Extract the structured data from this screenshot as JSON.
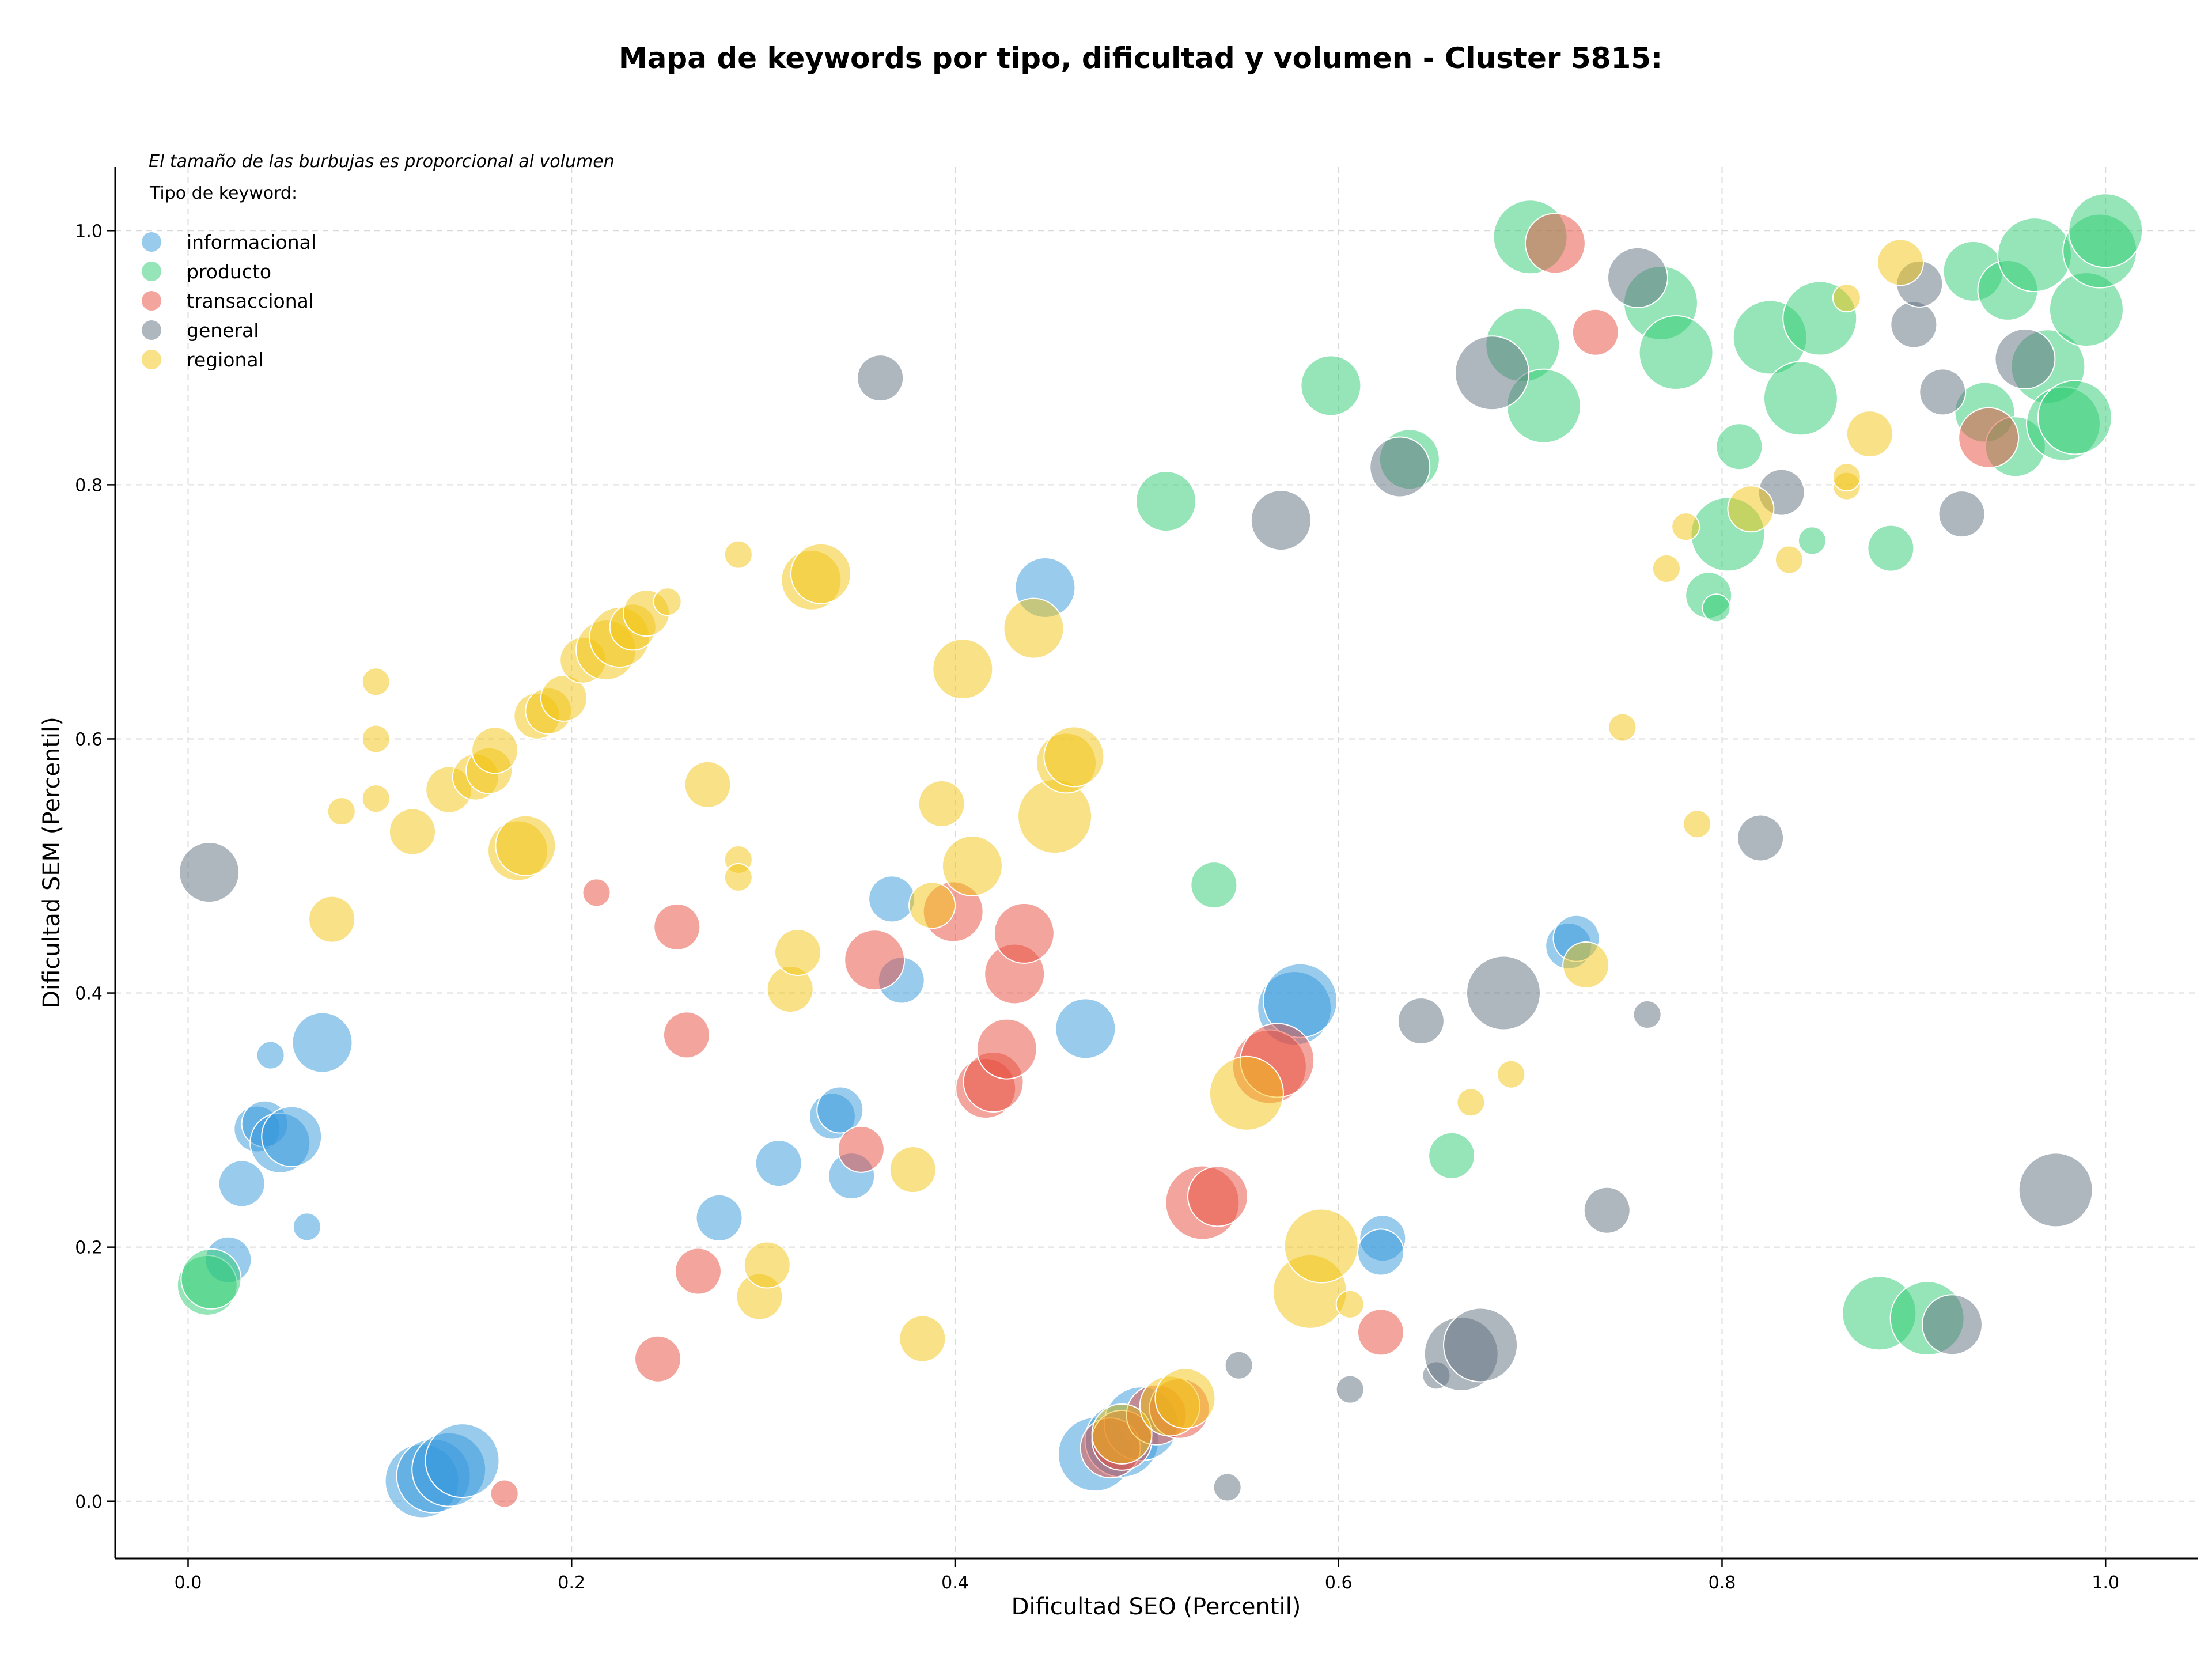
{
  "chart_data": {
    "type": "scatter",
    "title": "Mapa de keywords por tipo, dificultad y volumen - Cluster 5815:",
    "xlabel": "Dificultad SEO (Percentil)",
    "ylabel": "Dificultad SEM (Percentil)",
    "xlim": [
      -0.038,
      1.048
    ],
    "ylim": [
      -0.045,
      1.05
    ],
    "xticks": [
      0.0,
      0.2,
      0.4,
      0.6,
      0.8,
      1.0
    ],
    "yticks": [
      0.0,
      0.2,
      0.4,
      0.6,
      0.8,
      1.0
    ],
    "xtick_labels": [
      "0.0",
      "0.2",
      "0.4",
      "0.6",
      "0.8",
      "1.0"
    ],
    "ytick_labels": [
      "0.0",
      "0.2",
      "0.4",
      "0.6",
      "0.8",
      "1.0"
    ],
    "grid": true,
    "note": "El tamaño de las burbujas es proporcional al volumen",
    "legend_title": "Tipo de keyword:",
    "legend_position": "top-left",
    "series": [
      {
        "name": "informacional",
        "color": "#3498db",
        "points": [
          [
            0.021,
            0.19,
            2
          ],
          [
            0.028,
            0.25,
            2
          ],
          [
            0.036,
            0.293,
            2
          ],
          [
            0.04,
            0.297,
            2
          ],
          [
            0.043,
            0.351,
            1
          ],
          [
            0.048,
            0.282,
            3
          ],
          [
            0.054,
            0.287,
            3
          ],
          [
            0.062,
            0.216,
            1
          ],
          [
            0.07,
            0.361,
            3
          ],
          [
            0.122,
            0.016,
            4
          ],
          [
            0.128,
            0.02,
            4
          ],
          [
            0.136,
            0.025,
            4
          ],
          [
            0.143,
            0.032,
            4
          ],
          [
            0.277,
            0.223,
            2
          ],
          [
            0.308,
            0.266,
            2
          ],
          [
            0.336,
            0.303,
            2
          ],
          [
            0.34,
            0.308,
            2
          ],
          [
            0.346,
            0.256,
            2
          ],
          [
            0.367,
            0.474,
            2
          ],
          [
            0.372,
            0.41,
            2
          ],
          [
            0.447,
            0.719,
            3
          ],
          [
            0.468,
            0.372,
            3
          ],
          [
            0.473,
            0.037,
            4
          ],
          [
            0.487,
            0.048,
            4
          ],
          [
            0.497,
            0.061,
            4
          ],
          [
            0.577,
            0.388,
            4
          ],
          [
            0.58,
            0.394,
            4
          ],
          [
            0.623,
            0.207,
            2
          ],
          [
            0.622,
            0.196,
            2
          ],
          [
            0.72,
            0.437,
            2
          ],
          [
            0.724,
            0.443,
            2
          ]
        ]
      },
      {
        "name": "producto",
        "color": "#2ecc71",
        "points": [
          [
            0.01,
            0.17,
            3
          ],
          [
            0.012,
            0.175,
            3
          ],
          [
            0.51,
            0.787,
            3
          ],
          [
            0.535,
            0.485,
            2
          ],
          [
            0.596,
            0.878,
            3
          ],
          [
            0.637,
            0.82,
            3
          ],
          [
            0.659,
            0.272,
            2
          ],
          [
            0.7,
            0.995,
            4
          ],
          [
            0.696,
            0.91,
            4
          ],
          [
            0.707,
            0.862,
            4
          ],
          [
            0.768,
            0.943,
            4
          ],
          [
            0.776,
            0.904,
            4
          ],
          [
            0.793,
            0.713,
            2
          ],
          [
            0.797,
            0.703,
            1
          ],
          [
            0.803,
            0.761,
            4
          ],
          [
            0.809,
            0.83,
            2
          ],
          [
            0.825,
            0.916,
            4
          ],
          [
            0.841,
            0.868,
            4
          ],
          [
            0.847,
            0.756,
            1
          ],
          [
            0.851,
            0.931,
            4
          ],
          [
            0.888,
            0.75,
            2
          ],
          [
            0.882,
            0.148,
            4
          ],
          [
            0.907,
            0.144,
            4
          ],
          [
            0.931,
            0.968,
            3
          ],
          [
            0.937,
            0.857,
            3
          ],
          [
            0.949,
            0.953,
            3
          ],
          [
            0.953,
            0.83,
            3
          ],
          [
            0.963,
            0.981,
            4
          ],
          [
            0.97,
            0.893,
            4
          ],
          [
            0.978,
            0.848,
            4
          ],
          [
            0.984,
            0.853,
            4
          ],
          [
            0.99,
            0.938,
            4
          ],
          [
            0.997,
            0.984,
            4
          ],
          [
            1.0,
            1.0,
            4
          ]
        ]
      },
      {
        "name": "transaccional",
        "color": "#e74c3c",
        "points": [
          [
            0.165,
            0.006,
            1
          ],
          [
            0.213,
            0.479,
            1
          ],
          [
            0.245,
            0.112,
            2
          ],
          [
            0.255,
            0.452,
            2
          ],
          [
            0.26,
            0.367,
            2
          ],
          [
            0.266,
            0.181,
            2
          ],
          [
            0.351,
            0.277,
            2
          ],
          [
            0.358,
            0.426,
            3
          ],
          [
            0.399,
            0.464,
            3
          ],
          [
            0.416,
            0.325,
            3
          ],
          [
            0.42,
            0.33,
            3
          ],
          [
            0.427,
            0.356,
            3
          ],
          [
            0.431,
            0.415,
            3
          ],
          [
            0.436,
            0.447,
            3
          ],
          [
            0.481,
            0.042,
            3
          ],
          [
            0.487,
            0.048,
            3
          ],
          [
            0.505,
            0.068,
            3
          ],
          [
            0.517,
            0.073,
            3
          ],
          [
            0.529,
            0.235,
            4
          ],
          [
            0.537,
            0.24,
            3
          ],
          [
            0.564,
            0.342,
            4
          ],
          [
            0.568,
            0.347,
            4
          ],
          [
            0.622,
            0.133,
            2
          ],
          [
            0.713,
            0.99,
            3
          ],
          [
            0.734,
            0.92,
            2
          ],
          [
            0.939,
            0.837,
            3
          ]
        ]
      },
      {
        "name": "general",
        "color": "#5d6d7e",
        "points": [
          [
            0.011,
            0.495,
            3
          ],
          [
            0.361,
            0.884,
            2
          ],
          [
            0.542,
            0.011,
            1
          ],
          [
            0.548,
            0.107,
            1
          ],
          [
            0.57,
            0.772,
            3
          ],
          [
            0.606,
            0.088,
            1
          ],
          [
            0.632,
            0.814,
            3
          ],
          [
            0.643,
            0.378,
            2
          ],
          [
            0.651,
            0.099,
            1
          ],
          [
            0.664,
            0.116,
            4
          ],
          [
            0.674,
            0.123,
            4
          ],
          [
            0.68,
            0.888,
            4
          ],
          [
            0.686,
            0.4,
            4
          ],
          [
            0.74,
            0.229,
            2
          ],
          [
            0.756,
            0.963,
            3
          ],
          [
            0.761,
            0.383,
            1
          ],
          [
            0.82,
            0.522,
            2
          ],
          [
            0.831,
            0.794,
            2
          ],
          [
            0.9,
            0.926,
            2
          ],
          [
            0.903,
            0.958,
            2
          ],
          [
            0.915,
            0.873,
            2
          ],
          [
            0.92,
            0.139,
            3
          ],
          [
            0.925,
            0.777,
            2
          ],
          [
            0.958,
            0.899,
            3
          ],
          [
            0.974,
            0.245,
            4
          ]
        ]
      },
      {
        "name": "regional",
        "color": "#f1c40f",
        "points": [
          [
            0.075,
            0.458,
            2
          ],
          [
            0.08,
            0.543,
            1
          ],
          [
            0.098,
            0.553,
            1
          ],
          [
            0.098,
            0.6,
            1
          ],
          [
            0.098,
            0.645,
            1
          ],
          [
            0.117,
            0.527,
            2
          ],
          [
            0.136,
            0.56,
            2
          ],
          [
            0.15,
            0.57,
            2
          ],
          [
            0.157,
            0.575,
            2
          ],
          [
            0.16,
            0.591,
            2
          ],
          [
            0.172,
            0.512,
            3
          ],
          [
            0.176,
            0.516,
            3
          ],
          [
            0.182,
            0.618,
            2
          ],
          [
            0.188,
            0.622,
            2
          ],
          [
            0.196,
            0.632,
            2
          ],
          [
            0.206,
            0.662,
            2
          ],
          [
            0.218,
            0.67,
            3
          ],
          [
            0.225,
            0.68,
            3
          ],
          [
            0.232,
            0.688,
            2
          ],
          [
            0.239,
            0.699,
            2
          ],
          [
            0.25,
            0.708,
            1
          ],
          [
            0.271,
            0.564,
            2
          ],
          [
            0.287,
            0.745,
            1
          ],
          [
            0.287,
            0.505,
            1
          ],
          [
            0.287,
            0.491,
            1
          ],
          [
            0.298,
            0.161,
            2
          ],
          [
            0.302,
            0.186,
            2
          ],
          [
            0.314,
            0.403,
            2
          ],
          [
            0.318,
            0.432,
            2
          ],
          [
            0.325,
            0.725,
            3
          ],
          [
            0.33,
            0.73,
            3
          ],
          [
            0.378,
            0.261,
            2
          ],
          [
            0.383,
            0.128,
            2
          ],
          [
            0.388,
            0.469,
            2
          ],
          [
            0.393,
            0.549,
            2
          ],
          [
            0.404,
            0.655,
            3
          ],
          [
            0.409,
            0.5,
            3
          ],
          [
            0.441,
            0.687,
            3
          ],
          [
            0.452,
            0.539,
            4
          ],
          [
            0.458,
            0.581,
            3
          ],
          [
            0.462,
            0.586,
            3
          ],
          [
            0.487,
            0.053,
            3
          ],
          [
            0.512,
            0.075,
            3
          ],
          [
            0.52,
            0.081,
            3
          ],
          [
            0.552,
            0.321,
            4
          ],
          [
            0.585,
            0.165,
            4
          ],
          [
            0.591,
            0.201,
            4
          ],
          [
            0.606,
            0.155,
            1
          ],
          [
            0.669,
            0.314,
            1
          ],
          [
            0.69,
            0.336,
            1
          ],
          [
            0.729,
            0.422,
            2
          ],
          [
            0.748,
            0.609,
            1
          ],
          [
            0.771,
            0.734,
            1
          ],
          [
            0.781,
            0.767,
            1
          ],
          [
            0.787,
            0.533,
            1
          ],
          [
            0.815,
            0.781,
            2
          ],
          [
            0.835,
            0.741,
            1
          ],
          [
            0.865,
            0.799,
            1
          ],
          [
            0.865,
            0.806,
            1
          ],
          [
            0.865,
            0.947,
            1
          ],
          [
            0.877,
            0.84,
            2
          ],
          [
            0.893,
            0.975,
            2
          ]
        ]
      }
    ]
  }
}
